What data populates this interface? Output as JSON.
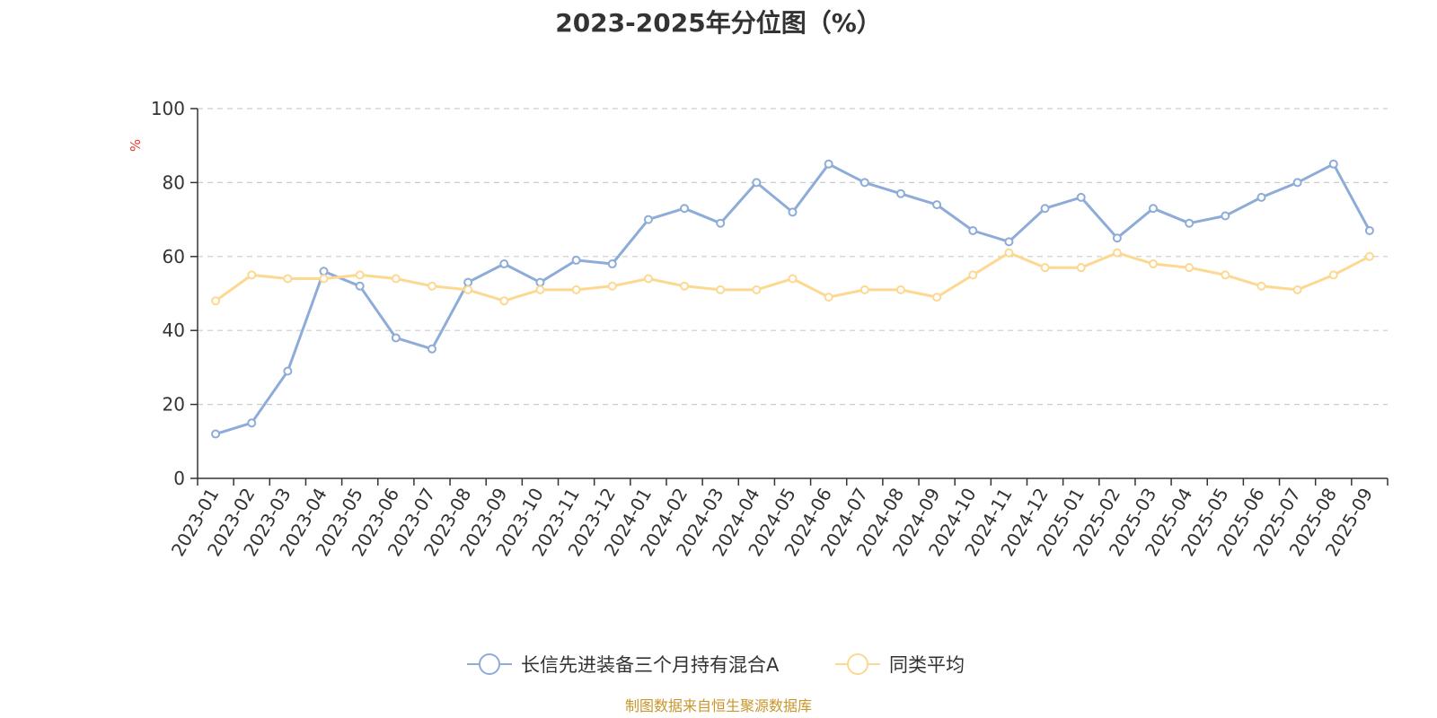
{
  "chart_data": {
    "type": "line",
    "title": "2023-2025年分位图（%）",
    "ylabel": "%",
    "xlabel": "",
    "ylim": [
      0,
      100
    ],
    "yticks": [
      0,
      20,
      40,
      60,
      80,
      100
    ],
    "grid": true,
    "legend_position": "bottom",
    "x": [
      "2023-01",
      "2023-02",
      "2023-03",
      "2023-04",
      "2023-05",
      "2023-06",
      "2023-07",
      "2023-08",
      "2023-09",
      "2023-10",
      "2023-11",
      "2023-12",
      "2024-01",
      "2024-02",
      "2024-03",
      "2024-04",
      "2024-05",
      "2024-06",
      "2024-07",
      "2024-08",
      "2024-09",
      "2024-10",
      "2024-11",
      "2024-12",
      "2025-01",
      "2025-02",
      "2025-03",
      "2025-04",
      "2025-05",
      "2025-06",
      "2025-07",
      "2025-08",
      "2025-09"
    ],
    "series": [
      {
        "name": "长信先进装备三个月持有混合A",
        "color": "#8eacd8",
        "values": [
          12,
          15,
          29,
          56,
          52,
          38,
          35,
          53,
          58,
          53,
          59,
          58,
          70,
          73,
          69,
          80,
          72,
          85,
          80,
          77,
          74,
          67,
          64,
          73,
          76,
          65,
          73,
          69,
          71,
          76,
          80,
          85,
          67
        ]
      },
      {
        "name": "同类平均",
        "color": "#fdd891",
        "values": [
          48,
          55,
          54,
          54,
          55,
          54,
          52,
          51,
          48,
          51,
          51,
          52,
          54,
          52,
          51,
          51,
          54,
          49,
          51,
          51,
          49,
          55,
          61,
          57,
          57,
          61,
          58,
          57,
          55,
          52,
          51,
          55,
          60
        ]
      }
    ],
    "footer": "制图数据来自恒生聚源数据库"
  }
}
